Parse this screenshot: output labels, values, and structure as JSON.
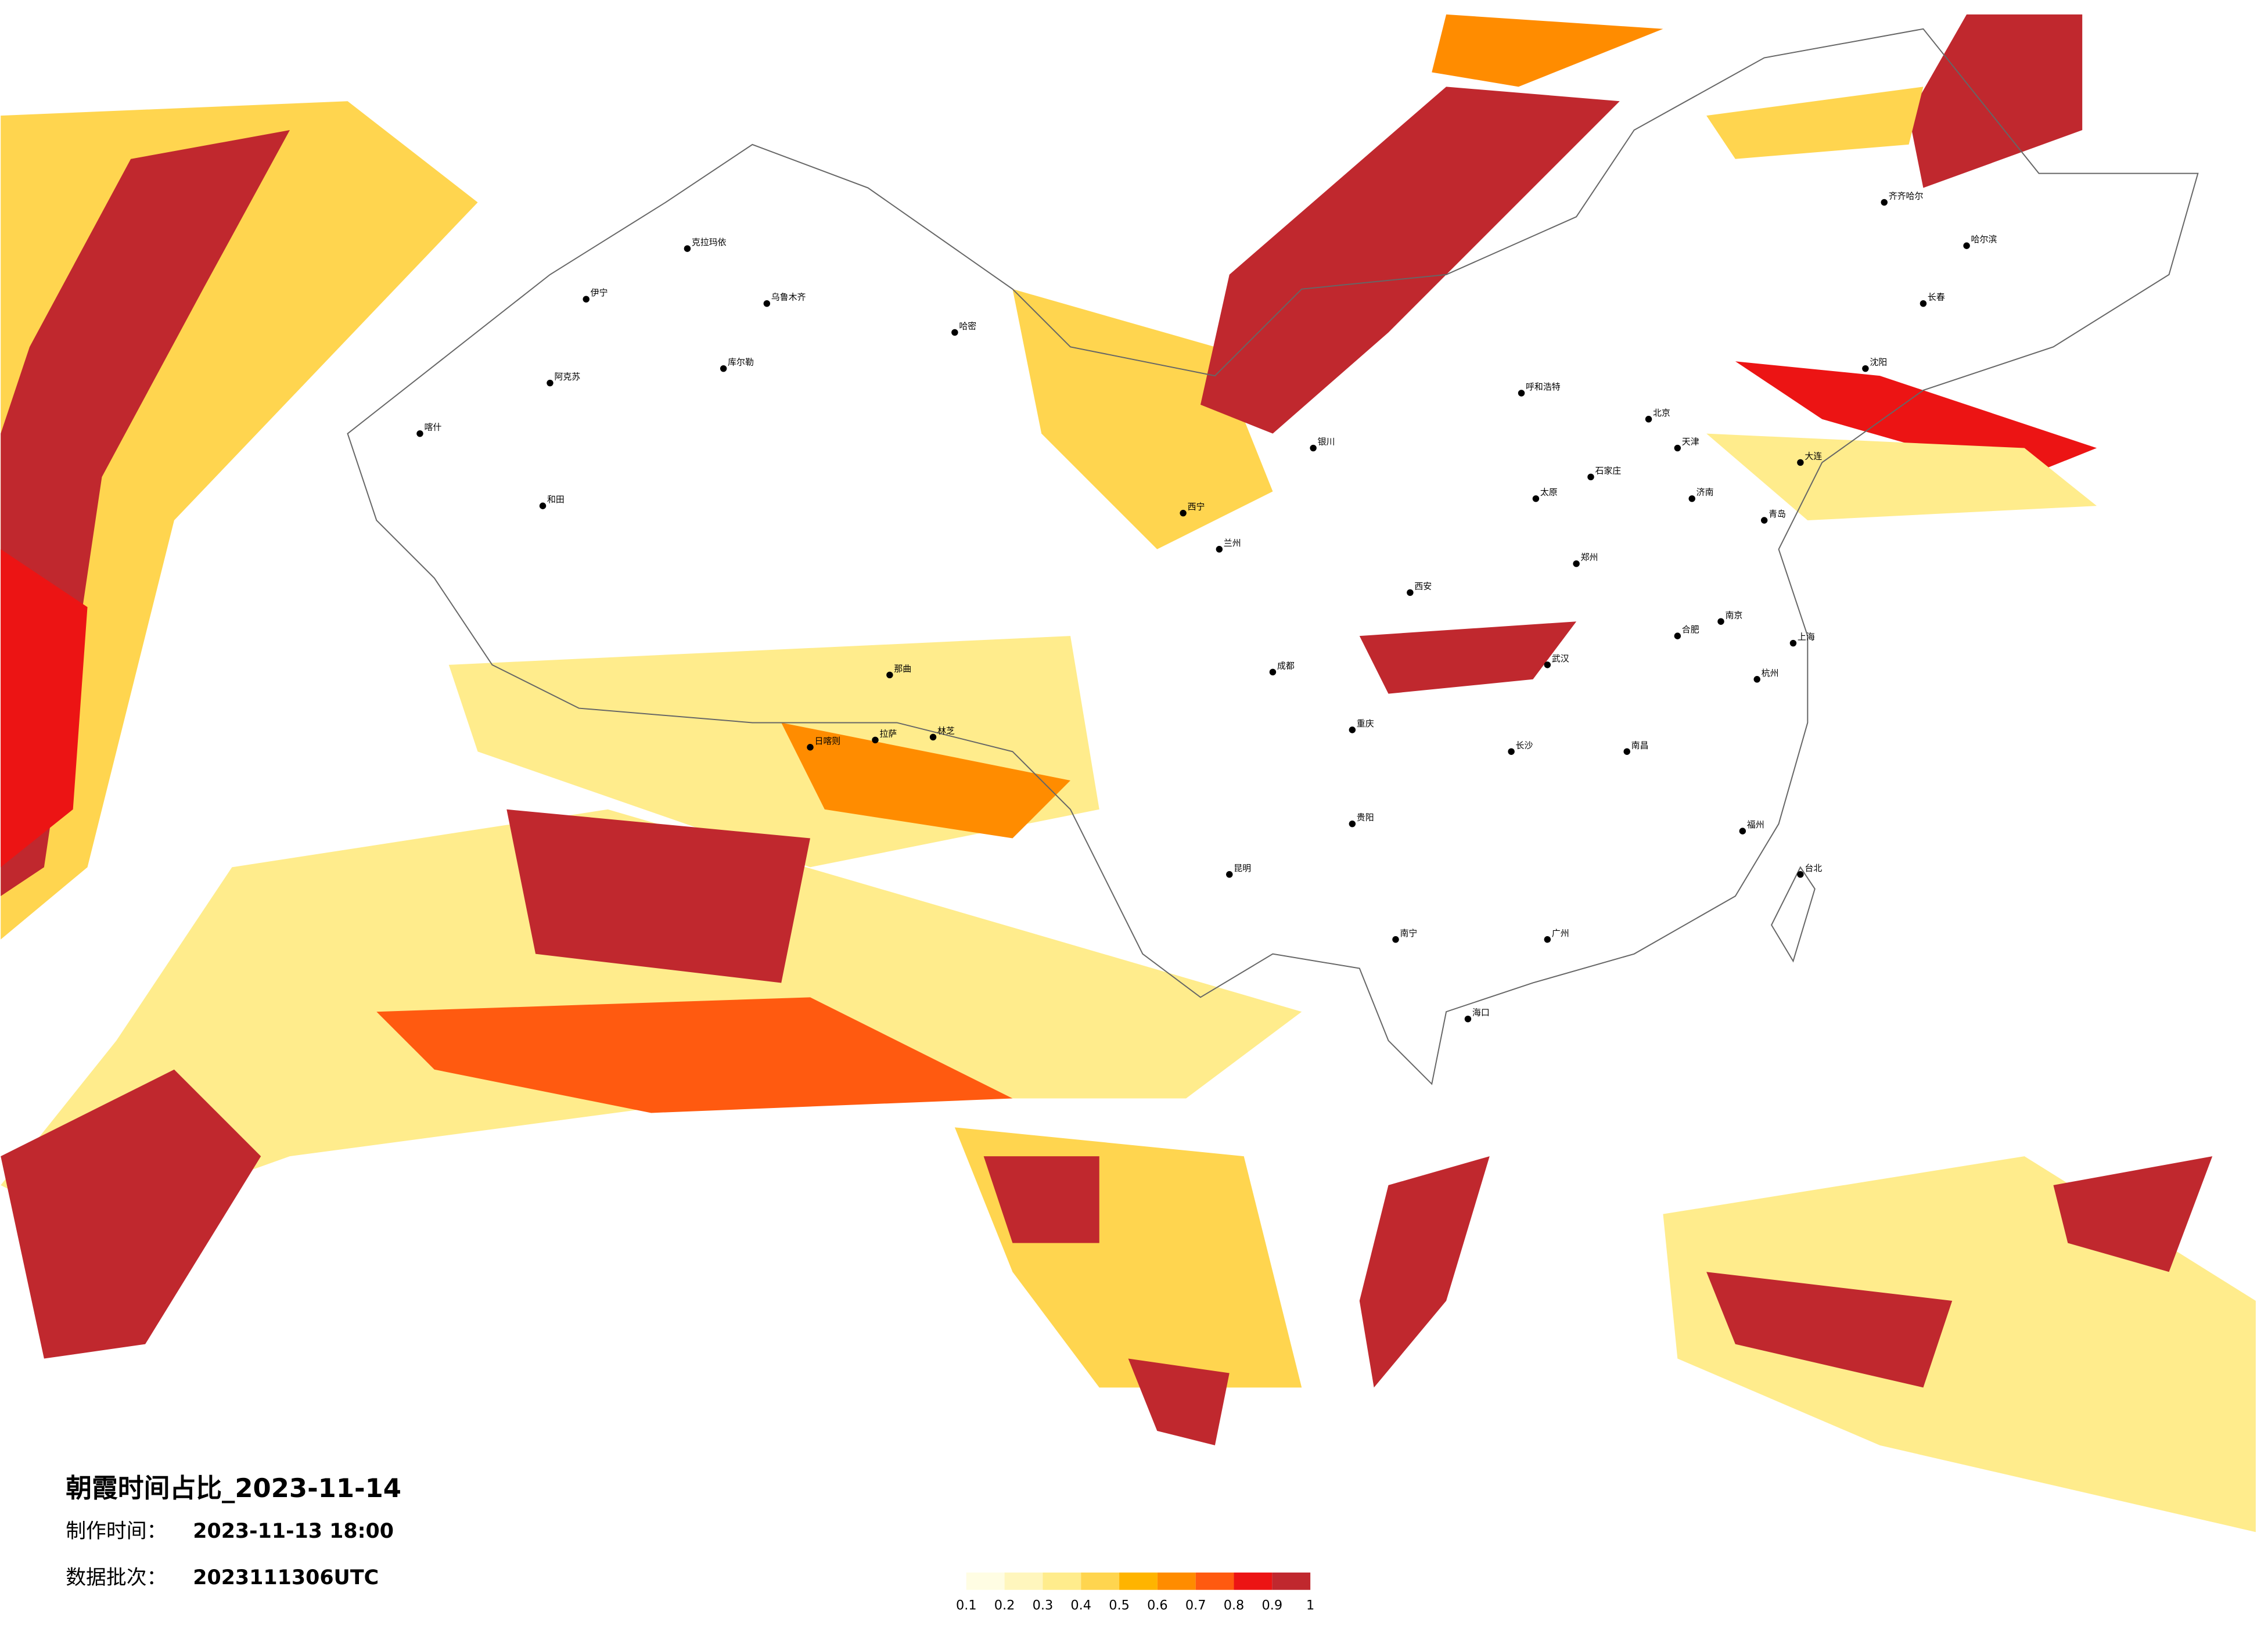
{
  "title": "朝霞时间占比_2023-11-14",
  "make_time": {
    "label": "制作时间：",
    "value": "2023-11-13 18:00"
  },
  "batch": {
    "label": "数据批次：",
    "value": "2023111306UTC"
  },
  "legend": {
    "colors": [
      "#fffde3",
      "#fff6bd",
      "#ffec8c",
      "#ffd54f",
      "#ffb400",
      "#ff8c00",
      "#ff5a10",
      "#ec1414",
      "#c0282e"
    ],
    "ticks": [
      0.1,
      0.2,
      0.3,
      0.4,
      0.5,
      0.6,
      0.7,
      0.8,
      0.9,
      1
    ]
  },
  "cities": [
    "乌鲁木齐",
    "克拉玛依",
    "伊宁",
    "哈密",
    "库尔勒",
    "阿克苏",
    "喀什",
    "和田",
    "日喀则",
    "拉萨",
    "林芝",
    "那曲",
    "西宁",
    "兰州",
    "银川",
    "呼和浩特",
    "北京",
    "天津",
    "石家庄",
    "太原",
    "西安",
    "郑州",
    "济南",
    "青岛",
    "南京",
    "上海",
    "杭州",
    "合肥",
    "武汉",
    "长沙",
    "南昌",
    "福州",
    "广州",
    "南宁",
    "海口",
    "贵阳",
    "昆明",
    "成都",
    "重庆",
    "哈尔滨",
    "长春",
    "沈阳",
    "大连",
    "台北",
    "齐齐哈尔"
  ]
}
